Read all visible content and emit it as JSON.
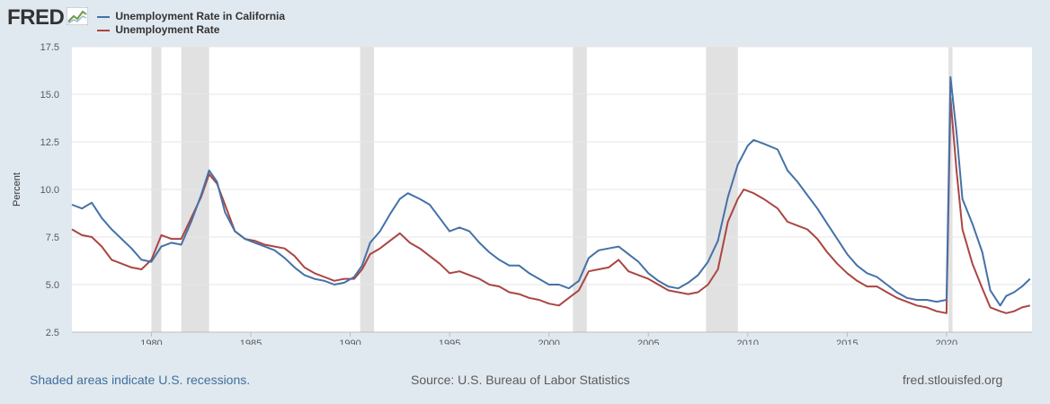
{
  "brand": {
    "logo_text": "FRED",
    "icon": "trend-chart-icon"
  },
  "colors": {
    "ca": "#4572a7",
    "us": "#aa4643",
    "recession": "#e1e1e1",
    "bg": "#e1e9f0"
  },
  "footer": {
    "left": "Shaded areas indicate U.S. recessions.",
    "middle": "Source: U.S. Bureau of Labor Statistics",
    "right": "fred.stlouisfed.org"
  },
  "chart_data": {
    "type": "line",
    "ylabel": "Percent",
    "xlim": [
      1976,
      2024.3
    ],
    "ylim": [
      2.5,
      17.5
    ],
    "yticks": [
      "2.5",
      "5.0",
      "7.5",
      "10.0",
      "12.5",
      "15.0",
      "17.5"
    ],
    "xticks": [
      "1980",
      "1985",
      "1990",
      "1995",
      "2000",
      "2005",
      "2010",
      "2015",
      "2020"
    ],
    "grid": true,
    "legend_position": "top-left",
    "recessions": [
      [
        1980.0,
        1980.5
      ],
      [
        1981.5,
        1982.9
      ],
      [
        1990.5,
        1991.2
      ],
      [
        2001.2,
        2001.9
      ],
      [
        2007.9,
        2009.5
      ],
      [
        2020.1,
        2020.3
      ]
    ],
    "series": [
      {
        "name": "Unemployment Rate in California",
        "points": [
          [
            1976.0,
            9.2
          ],
          [
            1976.5,
            9.0
          ],
          [
            1977.0,
            9.3
          ],
          [
            1977.5,
            8.5
          ],
          [
            1978.0,
            7.9
          ],
          [
            1978.5,
            7.4
          ],
          [
            1979.0,
            6.9
          ],
          [
            1979.5,
            6.3
          ],
          [
            1980.0,
            6.2
          ],
          [
            1980.5,
            7.0
          ],
          [
            1981.0,
            7.2
          ],
          [
            1981.5,
            7.1
          ],
          [
            1982.0,
            8.3
          ],
          [
            1982.5,
            9.7
          ],
          [
            1982.9,
            11.0
          ],
          [
            1983.3,
            10.4
          ],
          [
            1983.7,
            8.8
          ],
          [
            1984.2,
            7.8
          ],
          [
            1984.7,
            7.4
          ],
          [
            1985.2,
            7.2
          ],
          [
            1985.7,
            7.0
          ],
          [
            1986.2,
            6.8
          ],
          [
            1986.7,
            6.4
          ],
          [
            1987.2,
            5.9
          ],
          [
            1987.7,
            5.5
          ],
          [
            1988.2,
            5.3
          ],
          [
            1988.7,
            5.2
          ],
          [
            1989.2,
            5.0
          ],
          [
            1989.7,
            5.1
          ],
          [
            1990.2,
            5.4
          ],
          [
            1990.6,
            6.0
          ],
          [
            1991.0,
            7.2
          ],
          [
            1991.5,
            7.8
          ],
          [
            1992.0,
            8.7
          ],
          [
            1992.5,
            9.5
          ],
          [
            1992.9,
            9.8
          ],
          [
            1993.5,
            9.5
          ],
          [
            1994.0,
            9.2
          ],
          [
            1994.5,
            8.5
          ],
          [
            1995.0,
            7.8
          ],
          [
            1995.5,
            8.0
          ],
          [
            1996.0,
            7.8
          ],
          [
            1996.5,
            7.2
          ],
          [
            1997.0,
            6.7
          ],
          [
            1997.5,
            6.3
          ],
          [
            1998.0,
            6.0
          ],
          [
            1998.5,
            6.0
          ],
          [
            1999.0,
            5.6
          ],
          [
            1999.5,
            5.3
          ],
          [
            2000.0,
            5.0
          ],
          [
            2000.5,
            5.0
          ],
          [
            2001.0,
            4.8
          ],
          [
            2001.5,
            5.2
          ],
          [
            2002.0,
            6.4
          ],
          [
            2002.5,
            6.8
          ],
          [
            2003.0,
            6.9
          ],
          [
            2003.5,
            7.0
          ],
          [
            2004.0,
            6.6
          ],
          [
            2004.5,
            6.2
          ],
          [
            2005.0,
            5.6
          ],
          [
            2005.5,
            5.2
          ],
          [
            2006.0,
            4.9
          ],
          [
            2006.5,
            4.8
          ],
          [
            2007.0,
            5.1
          ],
          [
            2007.5,
            5.5
          ],
          [
            2008.0,
            6.2
          ],
          [
            2008.5,
            7.3
          ],
          [
            2009.0,
            9.6
          ],
          [
            2009.5,
            11.3
          ],
          [
            2010.0,
            12.3
          ],
          [
            2010.3,
            12.6
          ],
          [
            2010.8,
            12.4
          ],
          [
            2011.5,
            12.1
          ],
          [
            2012.0,
            11.0
          ],
          [
            2012.5,
            10.4
          ],
          [
            2013.0,
            9.7
          ],
          [
            2013.5,
            9.0
          ],
          [
            2014.0,
            8.2
          ],
          [
            2014.5,
            7.4
          ],
          [
            2015.0,
            6.6
          ],
          [
            2015.5,
            6.0
          ],
          [
            2016.0,
            5.6
          ],
          [
            2016.5,
            5.4
          ],
          [
            2017.0,
            5.0
          ],
          [
            2017.5,
            4.6
          ],
          [
            2018.0,
            4.3
          ],
          [
            2018.5,
            4.2
          ],
          [
            2019.0,
            4.2
          ],
          [
            2019.5,
            4.1
          ],
          [
            2020.0,
            4.2
          ],
          [
            2020.2,
            15.9
          ],
          [
            2020.5,
            13.0
          ],
          [
            2020.8,
            9.5
          ],
          [
            2021.3,
            8.2
          ],
          [
            2021.8,
            6.7
          ],
          [
            2022.2,
            4.7
          ],
          [
            2022.7,
            3.9
          ],
          [
            2023.0,
            4.4
          ],
          [
            2023.4,
            4.6
          ],
          [
            2023.8,
            4.9
          ],
          [
            2024.2,
            5.3
          ]
        ]
      },
      {
        "name": "Unemployment Rate",
        "points": [
          [
            1976.0,
            7.9
          ],
          [
            1976.5,
            7.6
          ],
          [
            1977.0,
            7.5
          ],
          [
            1977.5,
            7.0
          ],
          [
            1978.0,
            6.3
          ],
          [
            1978.5,
            6.1
          ],
          [
            1979.0,
            5.9
          ],
          [
            1979.5,
            5.8
          ],
          [
            1980.0,
            6.3
          ],
          [
            1980.5,
            7.6
          ],
          [
            1981.0,
            7.4
          ],
          [
            1981.5,
            7.4
          ],
          [
            1982.0,
            8.5
          ],
          [
            1982.5,
            9.6
          ],
          [
            1982.9,
            10.8
          ],
          [
            1983.3,
            10.3
          ],
          [
            1983.7,
            9.2
          ],
          [
            1984.2,
            7.8
          ],
          [
            1984.7,
            7.4
          ],
          [
            1985.2,
            7.3
          ],
          [
            1985.7,
            7.1
          ],
          [
            1986.2,
            7.0
          ],
          [
            1986.7,
            6.9
          ],
          [
            1987.2,
            6.5
          ],
          [
            1987.7,
            5.9
          ],
          [
            1988.2,
            5.6
          ],
          [
            1988.7,
            5.4
          ],
          [
            1989.2,
            5.2
          ],
          [
            1989.7,
            5.3
          ],
          [
            1990.2,
            5.3
          ],
          [
            1990.6,
            5.8
          ],
          [
            1991.0,
            6.6
          ],
          [
            1991.5,
            6.9
          ],
          [
            1992.0,
            7.3
          ],
          [
            1992.5,
            7.7
          ],
          [
            1993.0,
            7.2
          ],
          [
            1993.5,
            6.9
          ],
          [
            1994.0,
            6.5
          ],
          [
            1994.5,
            6.1
          ],
          [
            1995.0,
            5.6
          ],
          [
            1995.5,
            5.7
          ],
          [
            1996.0,
            5.5
          ],
          [
            1996.5,
            5.3
          ],
          [
            1997.0,
            5.0
          ],
          [
            1997.5,
            4.9
          ],
          [
            1998.0,
            4.6
          ],
          [
            1998.5,
            4.5
          ],
          [
            1999.0,
            4.3
          ],
          [
            1999.5,
            4.2
          ],
          [
            2000.0,
            4.0
          ],
          [
            2000.5,
            3.9
          ],
          [
            2001.0,
            4.3
          ],
          [
            2001.5,
            4.7
          ],
          [
            2002.0,
            5.7
          ],
          [
            2002.5,
            5.8
          ],
          [
            2003.0,
            5.9
          ],
          [
            2003.5,
            6.3
          ],
          [
            2004.0,
            5.7
          ],
          [
            2004.5,
            5.5
          ],
          [
            2005.0,
            5.3
          ],
          [
            2005.5,
            5.0
          ],
          [
            2006.0,
            4.7
          ],
          [
            2006.5,
            4.6
          ],
          [
            2007.0,
            4.5
          ],
          [
            2007.5,
            4.6
          ],
          [
            2008.0,
            5.0
          ],
          [
            2008.5,
            5.8
          ],
          [
            2009.0,
            8.3
          ],
          [
            2009.5,
            9.5
          ],
          [
            2009.8,
            10.0
          ],
          [
            2010.3,
            9.8
          ],
          [
            2010.8,
            9.5
          ],
          [
            2011.5,
            9.0
          ],
          [
            2012.0,
            8.3
          ],
          [
            2012.5,
            8.1
          ],
          [
            2013.0,
            7.9
          ],
          [
            2013.5,
            7.4
          ],
          [
            2014.0,
            6.7
          ],
          [
            2014.5,
            6.1
          ],
          [
            2015.0,
            5.6
          ],
          [
            2015.5,
            5.2
          ],
          [
            2016.0,
            4.9
          ],
          [
            2016.5,
            4.9
          ],
          [
            2017.0,
            4.6
          ],
          [
            2017.5,
            4.3
          ],
          [
            2018.0,
            4.1
          ],
          [
            2018.5,
            3.9
          ],
          [
            2019.0,
            3.8
          ],
          [
            2019.5,
            3.6
          ],
          [
            2020.0,
            3.5
          ],
          [
            2020.2,
            14.8
          ],
          [
            2020.5,
            11.0
          ],
          [
            2020.8,
            7.9
          ],
          [
            2021.3,
            6.1
          ],
          [
            2021.8,
            4.8
          ],
          [
            2022.2,
            3.8
          ],
          [
            2022.7,
            3.6
          ],
          [
            2023.0,
            3.5
          ],
          [
            2023.4,
            3.6
          ],
          [
            2023.8,
            3.8
          ],
          [
            2024.2,
            3.9
          ]
        ]
      }
    ]
  }
}
